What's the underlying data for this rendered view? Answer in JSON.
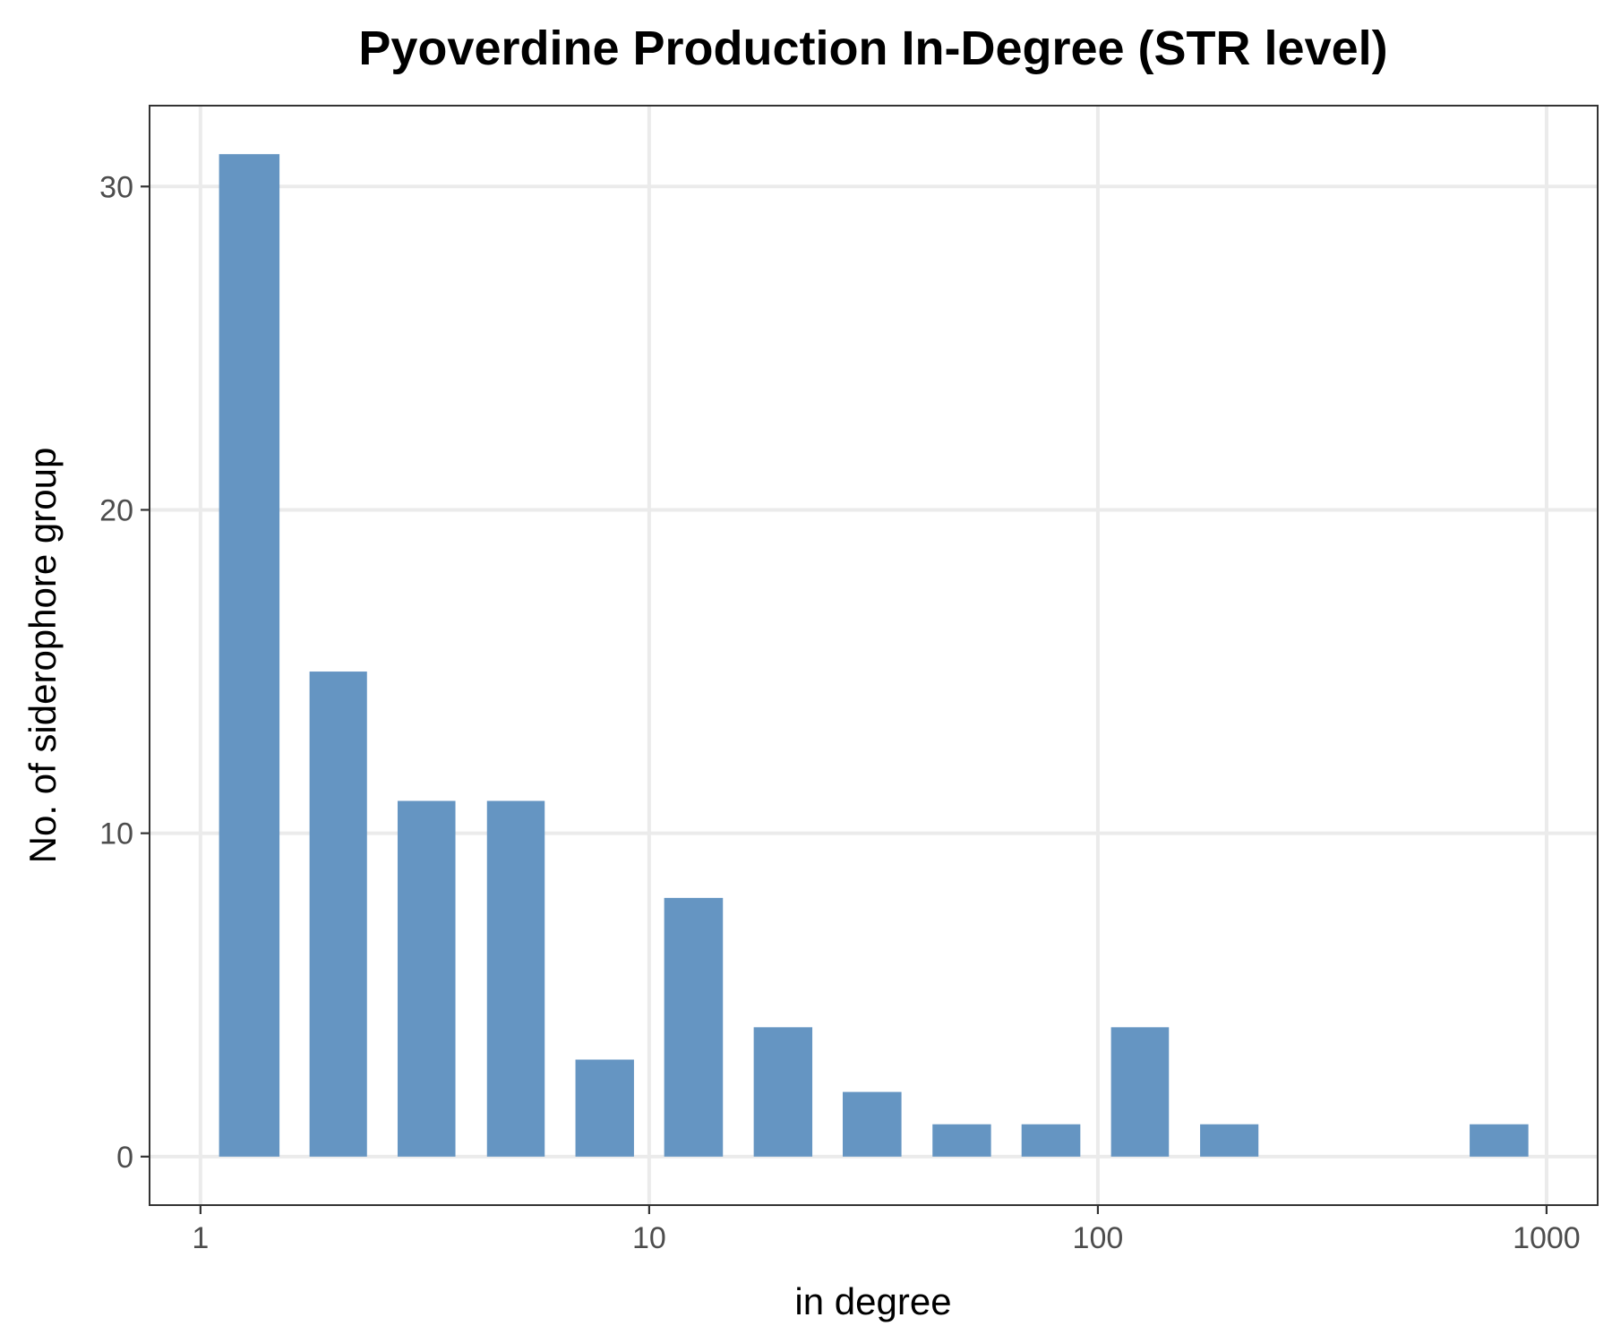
{
  "chart_data": {
    "type": "bar",
    "title": "Pyoverdine Production In-Degree (STR level)",
    "xlabel": "in degree",
    "ylabel": "No. of siderophore group",
    "x_scale": "log10",
    "xlim": [
      0.77,
      1300
    ],
    "ylim": [
      -1.5,
      32.5
    ],
    "x_ticks": [
      {
        "value": 1,
        "label": "1"
      },
      {
        "value": 10,
        "label": "10"
      },
      {
        "value": 100,
        "label": "100"
      },
      {
        "value": 1000,
        "label": "1000"
      }
    ],
    "y_ticks": [
      {
        "value": 0,
        "label": "0"
      },
      {
        "value": 10,
        "label": "10"
      },
      {
        "value": 20,
        "label": "20"
      },
      {
        "value": 30,
        "label": "30"
      }
    ],
    "bars": [
      {
        "x_min": 1.1,
        "x_max": 1.5,
        "value": 31
      },
      {
        "x_min": 1.75,
        "x_max": 2.35,
        "value": 15
      },
      {
        "x_min": 2.75,
        "x_max": 3.7,
        "value": 11
      },
      {
        "x_min": 4.35,
        "x_max": 5.85,
        "value": 11
      },
      {
        "x_min": 6.85,
        "x_max": 9.25,
        "value": 3
      },
      {
        "x_min": 10.8,
        "x_max": 14.6,
        "value": 8
      },
      {
        "x_min": 17.1,
        "x_max": 23.1,
        "value": 4
      },
      {
        "x_min": 27.0,
        "x_max": 36.5,
        "value": 2
      },
      {
        "x_min": 42.8,
        "x_max": 57.8,
        "value": 1
      },
      {
        "x_min": 67.6,
        "x_max": 91.4,
        "value": 1
      },
      {
        "x_min": 107,
        "x_max": 144,
        "value": 4
      },
      {
        "x_min": 169,
        "x_max": 228,
        "value": 1
      },
      {
        "x_min": 674,
        "x_max": 911,
        "value": 1
      }
    ],
    "bar_color": "#6595c2",
    "grid": true,
    "legend": "none"
  }
}
